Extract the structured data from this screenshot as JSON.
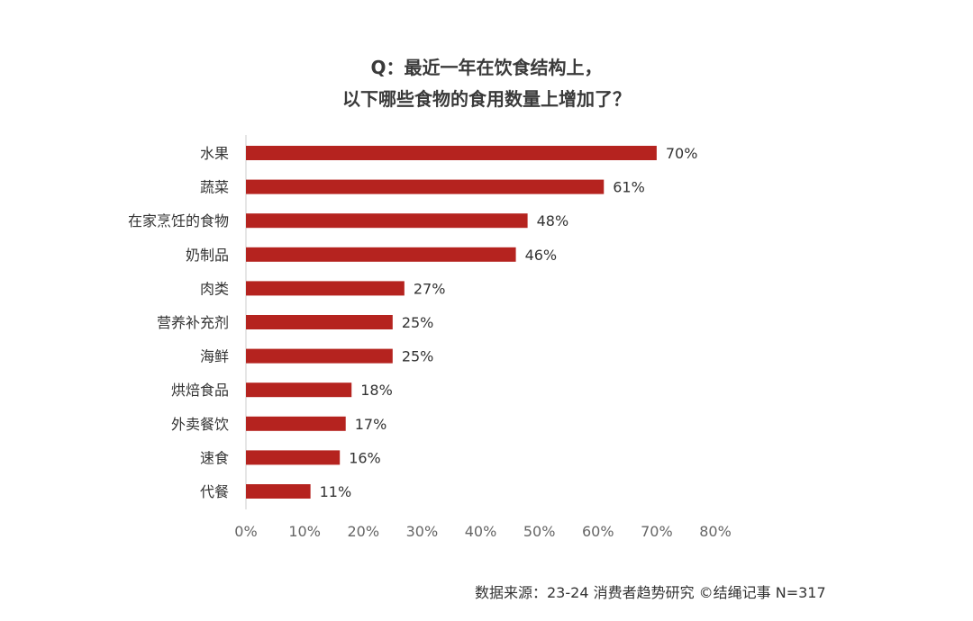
{
  "header": {
    "title_line1": "Q：最近一年在饮食结构上，",
    "title_line2": "以下哪些食物的食用数量上增加了？"
  },
  "footer": {
    "source": "数据来源：23-24 消费者趋势研究 ©结绳记事 N=317"
  },
  "colors": {
    "bar": "#b5231f",
    "axis": "#cccccc",
    "text": "#333333",
    "tick_text": "#666666"
  },
  "chart_data": {
    "type": "bar",
    "orientation": "horizontal",
    "categories": [
      "水果",
      "蔬菜",
      "在家烹饪的食物",
      "奶制品",
      "肉类",
      "营养补充剂",
      "海鲜",
      "烘焙食品",
      "外卖餐饮",
      "速食",
      "代餐"
    ],
    "values": [
      70,
      61,
      48,
      46,
      27,
      25,
      25,
      18,
      17,
      16,
      11
    ],
    "value_labels": [
      "70%",
      "61%",
      "48%",
      "46%",
      "27%",
      "25%",
      "25%",
      "18%",
      "17%",
      "16%",
      "11%"
    ],
    "xlim": [
      0,
      80
    ],
    "xticks": [
      "0%",
      "10%",
      "20%",
      "30%",
      "40%",
      "50%",
      "60%",
      "70%",
      "80%"
    ],
    "grid": false,
    "legend": "none"
  }
}
